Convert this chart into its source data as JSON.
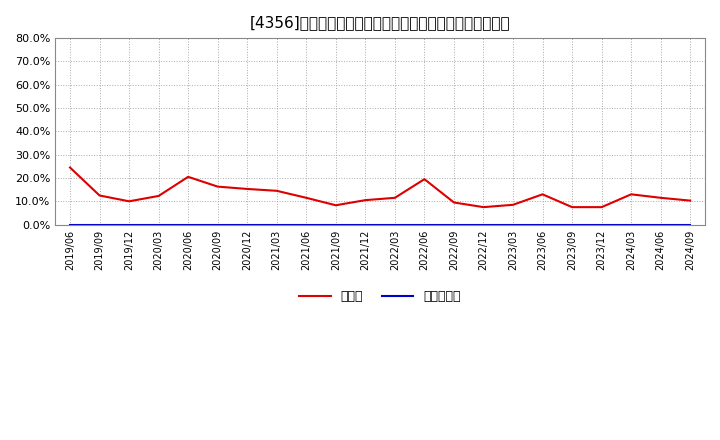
{
  "title": "[4356]　現預金、有利子負債の総資産に対する比率の推移",
  "x_labels": [
    "2019/06",
    "2019/09",
    "2019/12",
    "2020/03",
    "2020/06",
    "2020/09",
    "2020/12",
    "2021/03",
    "2021/06",
    "2021/09",
    "2021/12",
    "2022/03",
    "2022/06",
    "2022/09",
    "2022/12",
    "2023/03",
    "2023/06",
    "2023/09",
    "2023/12",
    "2024/03",
    "2024/06",
    "2024/09"
  ],
  "cash_values": [
    0.245,
    0.125,
    0.1,
    0.123,
    0.205,
    0.163,
    0.153,
    0.145,
    0.115,
    0.083,
    0.105,
    0.115,
    0.195,
    0.095,
    0.075,
    0.085,
    0.13,
    0.075,
    0.075,
    0.13,
    0.115,
    0.103
  ],
  "debt_values": [
    0.0,
    0.0,
    0.0,
    0.0,
    0.0,
    0.0,
    0.0,
    0.0,
    0.0,
    0.0,
    0.0,
    0.0,
    0.0,
    0.0,
    0.0,
    0.0,
    0.0,
    0.0,
    0.0,
    0.0,
    0.0,
    0.0
  ],
  "cash_color": "#dd0000",
  "debt_color": "#0000cc",
  "ylim": [
    0.0,
    0.8
  ],
  "yticks": [
    0.0,
    0.1,
    0.2,
    0.3,
    0.4,
    0.5,
    0.6,
    0.7,
    0.8
  ],
  "legend_cash": "現預金",
  "legend_debt": "有利子負債",
  "bg_color": "#ffffff",
  "grid_color": "#aaaaaa",
  "title_fontsize": 11
}
